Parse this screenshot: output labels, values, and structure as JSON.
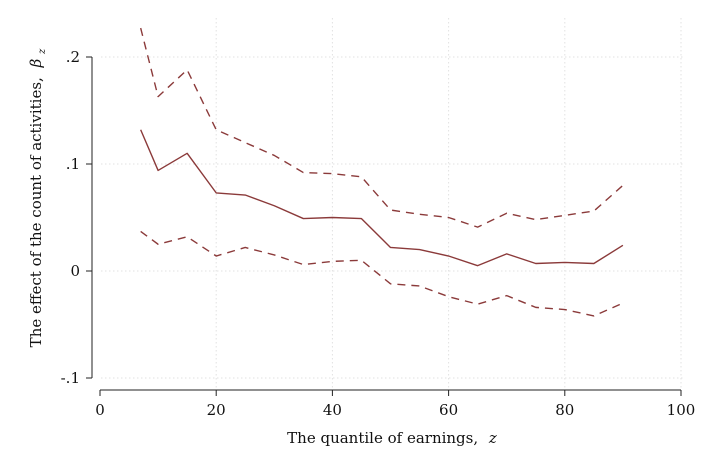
{
  "chart_data": {
    "type": "line",
    "title": "",
    "xlabel": "The quantile of earnings,",
    "xlabel_var": "z",
    "ylabel": "The effect of the count of activities,",
    "ylabel_var": "β",
    "ylabel_sub": "z",
    "xlim": [
      0,
      100
    ],
    "ylim": [
      -0.1,
      0.2
    ],
    "xticks": [
      0,
      20,
      40,
      60,
      80,
      100
    ],
    "xtick_labels": [
      "0",
      "20",
      "40",
      "60",
      "80",
      "100"
    ],
    "yticks": [
      -0.1,
      0,
      0.1,
      0.2
    ],
    "ytick_labels": [
      "-.1",
      "0",
      ".1",
      ".2"
    ],
    "grid": true,
    "legend": "none",
    "x": [
      7,
      10,
      15,
      20,
      25,
      30,
      35,
      40,
      45,
      50,
      55,
      60,
      65,
      70,
      75,
      80,
      85,
      90
    ],
    "series": [
      {
        "style": "solid",
        "color": "#8b3a3a",
        "values": [
          0.132,
          0.094,
          0.11,
          0.073,
          0.071,
          0.061,
          0.049,
          0.05,
          0.049,
          0.022,
          0.02,
          0.014,
          0.005,
          0.016,
          0.007,
          0.008,
          0.007,
          0.024
        ]
      },
      {
        "style": "dashed",
        "color": "#8b3a3a",
        "values": [
          0.227,
          0.163,
          0.188,
          0.132,
          0.12,
          0.108,
          0.092,
          0.091,
          0.088,
          0.057,
          0.053,
          0.05,
          0.041,
          0.054,
          0.048,
          0.052,
          0.056,
          0.08
        ]
      },
      {
        "style": "dashed",
        "color": "#8b3a3a",
        "values": [
          0.037,
          0.025,
          0.032,
          0.014,
          0.022,
          0.015,
          0.006,
          0.009,
          0.01,
          -0.012,
          -0.014,
          -0.024,
          -0.031,
          -0.023,
          -0.034,
          -0.036,
          -0.042,
          -0.03
        ]
      }
    ]
  }
}
